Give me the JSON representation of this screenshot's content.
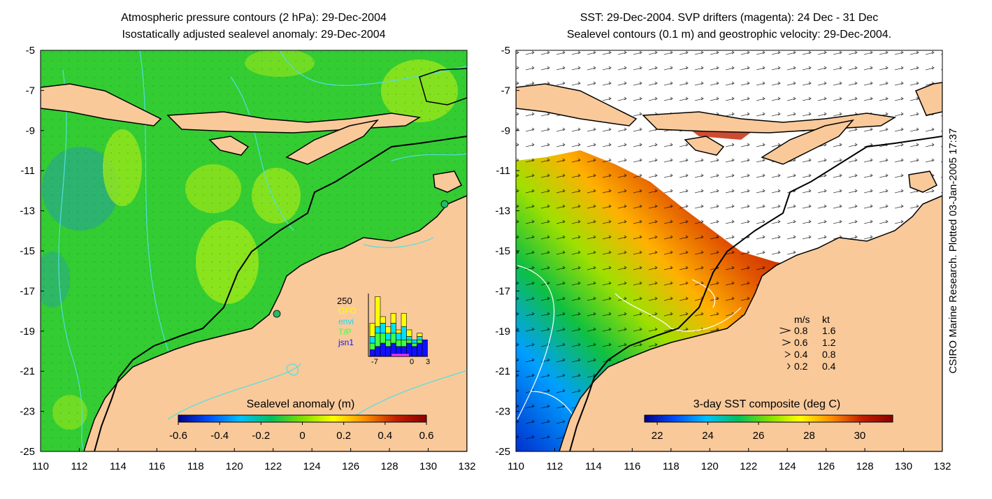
{
  "left_panel": {
    "title_line1": "Atmospheric pressure contours (2 hPa): 29-Dec-2004",
    "title_line2": "Isostatically adjusted sealevel anomaly: 29-Dec-2004",
    "colorbar_label": "Sealevel anomaly (m)",
    "colorbar_ticks": [
      "-0.6",
      "-0.4",
      "-0.2",
      "0",
      "0.2",
      "0.4",
      "0.6"
    ],
    "colorbar_range": [
      -0.6,
      0.6
    ],
    "colors": [
      "#00008b",
      "#0050ff",
      "#00c0ff",
      "#00c060",
      "#80e000",
      "#ffff00",
      "#ff9000",
      "#c02000",
      "#8b0000"
    ],
    "inset": {
      "count_label": "250",
      "legend": [
        {
          "label": "GFO",
          "color": "#ffff00"
        },
        {
          "label": "envi",
          "color": "#00e0ff"
        },
        {
          "label": "T/P",
          "color": "#40ff40"
        },
        {
          "label": "jsn1",
          "color": "#1010ff"
        }
      ],
      "x_ticks": [
        "-7",
        "0",
        "3"
      ],
      "bars": [
        {
          "jsn1": 0.1,
          "tp": 0.1,
          "envi": 0.1,
          "gfo": 0.2
        },
        {
          "jsn1": 0.15,
          "tp": 0.2,
          "envi": 0.1,
          "gfo": 0.45
        },
        {
          "jsn1": 0.2,
          "tp": 0.15,
          "envi": 0.15,
          "gfo": 0.1
        },
        {
          "jsn1": 0.15,
          "tp": 0.1,
          "envi": 0.1,
          "gfo": 0.1
        },
        {
          "jsn1": 0.2,
          "tp": 0.15,
          "envi": 0.15,
          "gfo": 0.15
        },
        {
          "jsn1": 0.15,
          "tp": 0.1,
          "envi": 0.1,
          "gfo": 0.05
        },
        {
          "jsn1": 0.15,
          "tp": 0.1,
          "envi": 0.2,
          "gfo": 0.2
        },
        {
          "jsn1": 0.2,
          "tp": 0.05,
          "envi": 0.05,
          "gfo": 0.1
        },
        {
          "jsn1": 0.15,
          "tp": 0.05,
          "envi": 0.05,
          "gfo": 0.0
        },
        {
          "jsn1": 0.2,
          "tp": 0.05,
          "envi": 0.05,
          "gfo": 0.05
        },
        {
          "jsn1": 0.25,
          "tp": 0.0,
          "envi": 0.0,
          "gfo": 0.0
        }
      ]
    }
  },
  "right_panel": {
    "title_line1": "SST: 29-Dec-2004. SVP drifters (magenta): 24 Dec - 31 Dec",
    "title_line2": "Sealevel contours (0.1 m) and geostrophic velocity: 29-Dec-2004.",
    "colorbar_label": "3-day SST composite (deg C)",
    "colorbar_ticks": [
      "22",
      "24",
      "26",
      "28",
      "30"
    ],
    "colorbar_range": [
      21.5,
      31.3
    ],
    "colors": [
      "#00008b",
      "#0050ff",
      "#00c0ff",
      "#00c060",
      "#80e000",
      "#ffff00",
      "#ff9000",
      "#c02000",
      "#8b0000"
    ],
    "velocity_legend": {
      "header_ms": "m/s",
      "header_kt": "kt",
      "rows": [
        {
          "ms": "0.8",
          "kt": "1.6"
        },
        {
          "ms": "0.6",
          "kt": "1.2"
        },
        {
          "ms": "0.4",
          "kt": "0.8"
        },
        {
          "ms": "0.2",
          "kt": "0.4"
        }
      ]
    }
  },
  "x_ticks": [
    "110",
    "112",
    "114",
    "116",
    "118",
    "120",
    "122",
    "124",
    "126",
    "128",
    "130",
    "132"
  ],
  "y_ticks": [
    "-5",
    "-7",
    "-9",
    "-11",
    "-13",
    "-15",
    "-17",
    "-19",
    "-21",
    "-23",
    "-25"
  ],
  "credit": "CSIRO Marine Research. Plotted 03-Jan-2005 17:37",
  "palette": {
    "land": "#f9c99a",
    "ocean_green": "#33cc33",
    "ocean_lime": "#99e61a",
    "ocean_teal": "#2cae7a",
    "contour_cyan": "#4fe0e0",
    "coast": "#000000",
    "sst_white": "#ffffff"
  }
}
